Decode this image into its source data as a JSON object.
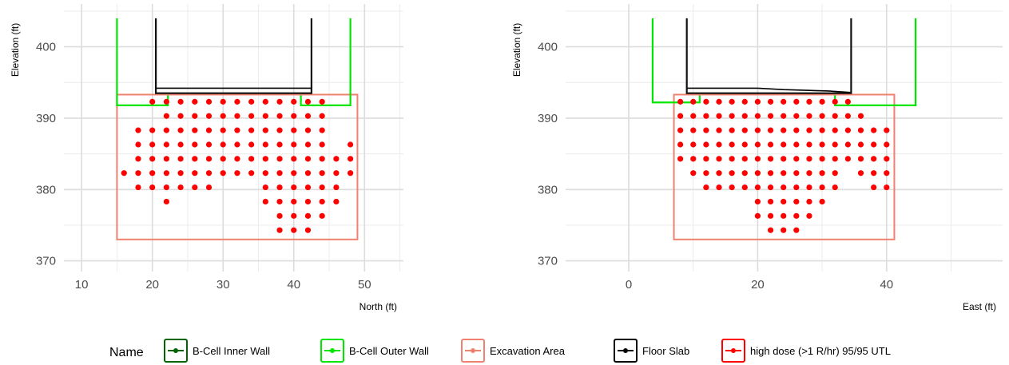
{
  "legend": {
    "title": "Name",
    "entries": [
      {
        "label": "B-Cell Inner Wall",
        "color": "#006400",
        "icon": "line-point"
      },
      {
        "label": "B-Cell Outer Wall",
        "color": "#00e600",
        "icon": "line-point"
      },
      {
        "label": "Excavation Area",
        "color": "#f08070",
        "icon": "line-point"
      },
      {
        "label": "Floor Slab",
        "color": "#000000",
        "icon": "line-point"
      },
      {
        "label": "high dose (>1 R/hr) 95/95 UTL",
        "color": "#ff0000",
        "icon": "line-point"
      }
    ]
  },
  "chart_data": [
    {
      "type": "scatter",
      "title": "",
      "xlabel": "North (ft)",
      "ylabel": "Elevation (ft)",
      "xlim": [
        7.5,
        55.5
      ],
      "ylim": [
        368.5,
        406
      ],
      "xticks": [
        10,
        20,
        30,
        40,
        50
      ],
      "yticks": [
        370,
        380,
        390,
        400
      ],
      "grid": true,
      "inner_wall": [
        [
          [
            20.5,
            404
          ],
          [
            20.5,
            393.5
          ],
          [
            42.5,
            393.5
          ],
          [
            42.5,
            404
          ]
        ]
      ],
      "outer_wall": [
        [
          [
            15,
            404
          ],
          [
            15,
            391.8
          ],
          [
            22.2,
            391.8
          ],
          [
            22.2,
            393.2
          ]
        ],
        [
          [
            41,
            393.2
          ],
          [
            41,
            391.8
          ],
          [
            48,
            391.8
          ],
          [
            48,
            404
          ]
        ]
      ],
      "floor_slab": [
        [
          [
            20.5,
            394.2
          ],
          [
            42.5,
            394.2
          ]
        ]
      ],
      "excavation": {
        "x0": 15,
        "x1": 49,
        "y0": 373,
        "y1": 393.3
      },
      "high_dose": {
        "name": "high dose (>1 R/hr) 95/95 UTL",
        "rows": [
          {
            "y": 392.3,
            "x": [
              20,
              22,
              24,
              26,
              28,
              30,
              32,
              34,
              36,
              38,
              40,
              42,
              44
            ]
          },
          {
            "y": 390.3,
            "x": [
              22,
              24,
              26,
              28,
              30,
              32,
              34,
              36,
              38,
              40,
              42,
              44
            ]
          },
          {
            "y": 388.3,
            "x": [
              18,
              20,
              22,
              24,
              26,
              28,
              30,
              32,
              34,
              36,
              38,
              40,
              42,
              44
            ]
          },
          {
            "y": 386.3,
            "x": [
              18,
              20,
              22,
              24,
              26,
              28,
              30,
              32,
              34,
              36,
              38,
              40,
              42,
              44,
              48
            ]
          },
          {
            "y": 384.3,
            "x": [
              18,
              20,
              22,
              24,
              26,
              28,
              30,
              32,
              34,
              36,
              38,
              40,
              42,
              44,
              46,
              48
            ]
          },
          {
            "y": 382.3,
            "x": [
              16,
              18,
              20,
              22,
              24,
              26,
              28,
              30,
              32,
              34,
              36,
              38,
              40,
              42,
              44,
              46,
              48
            ]
          },
          {
            "y": 380.3,
            "x": [
              18,
              20,
              22,
              24,
              26,
              28,
              36,
              38,
              40,
              42,
              44,
              46
            ]
          },
          {
            "y": 378.3,
            "x": [
              22,
              36,
              38,
              40,
              42,
              44,
              46
            ]
          },
          {
            "y": 376.3,
            "x": [
              38,
              40,
              42,
              44
            ]
          },
          {
            "y": 374.3,
            "x": [
              38,
              40,
              42
            ]
          }
        ]
      }
    },
    {
      "type": "scatter",
      "title": "",
      "xlabel": "East (ft)",
      "ylabel": "Elevation (ft)",
      "xlim": [
        -9.8,
        58
      ],
      "ylim": [
        368.5,
        406
      ],
      "xticks": [
        0,
        20,
        40
      ],
      "yticks": [
        370,
        380,
        390,
        400
      ],
      "grid": true,
      "inner_wall": [
        [
          [
            9,
            404
          ],
          [
            9,
            393.5
          ],
          [
            34.5,
            393.5
          ],
          [
            34.5,
            404
          ]
        ]
      ],
      "outer_wall": [
        [
          [
            3.7,
            404
          ],
          [
            3.7,
            392.2
          ],
          [
            11,
            392.2
          ],
          [
            11,
            393.2
          ]
        ],
        [
          [
            32,
            393.2
          ],
          [
            32,
            391.8
          ],
          [
            44.5,
            391.8
          ],
          [
            44.5,
            404
          ]
        ]
      ],
      "floor_slab": [
        [
          [
            9,
            394.2
          ],
          [
            20,
            394.2
          ],
          [
            24,
            394.0
          ],
          [
            31,
            393.8
          ],
          [
            34.5,
            393.6
          ]
        ]
      ],
      "excavation": {
        "x0": 7,
        "x1": 41.2,
        "y0": 373,
        "y1": 393.3
      },
      "high_dose": {
        "name": "high dose (>1 R/hr) 95/95 UTL",
        "rows": [
          {
            "y": 392.3,
            "x": [
              8,
              10,
              12,
              14,
              16,
              18,
              20,
              22,
              24,
              26,
              28,
              30,
              32,
              34
            ]
          },
          {
            "y": 390.3,
            "x": [
              8,
              10,
              12,
              14,
              16,
              18,
              20,
              22,
              24,
              26,
              28,
              30,
              32,
              34,
              36
            ]
          },
          {
            "y": 388.3,
            "x": [
              8,
              10,
              12,
              14,
              16,
              18,
              20,
              22,
              24,
              26,
              28,
              30,
              32,
              34,
              36,
              38,
              40
            ]
          },
          {
            "y": 386.3,
            "x": [
              8,
              10,
              12,
              14,
              16,
              18,
              20,
              22,
              24,
              26,
              28,
              30,
              32,
              34,
              36,
              38,
              40
            ]
          },
          {
            "y": 384.3,
            "x": [
              8,
              10,
              12,
              14,
              16,
              18,
              20,
              22,
              24,
              26,
              28,
              30,
              32,
              34,
              36,
              38,
              40
            ]
          },
          {
            "y": 382.3,
            "x": [
              10,
              12,
              14,
              16,
              18,
              20,
              22,
              24,
              26,
              28,
              30,
              32,
              36,
              38,
              40
            ]
          },
          {
            "y": 380.3,
            "x": [
              12,
              14,
              16,
              18,
              20,
              22,
              24,
              26,
              28,
              30,
              32,
              38,
              40
            ]
          },
          {
            "y": 378.3,
            "x": [
              20,
              22,
              24,
              26,
              28,
              30
            ]
          },
          {
            "y": 376.3,
            "x": [
              20,
              22,
              24,
              26,
              28
            ]
          },
          {
            "y": 374.3,
            "x": [
              22,
              24,
              26
            ]
          }
        ]
      }
    }
  ]
}
